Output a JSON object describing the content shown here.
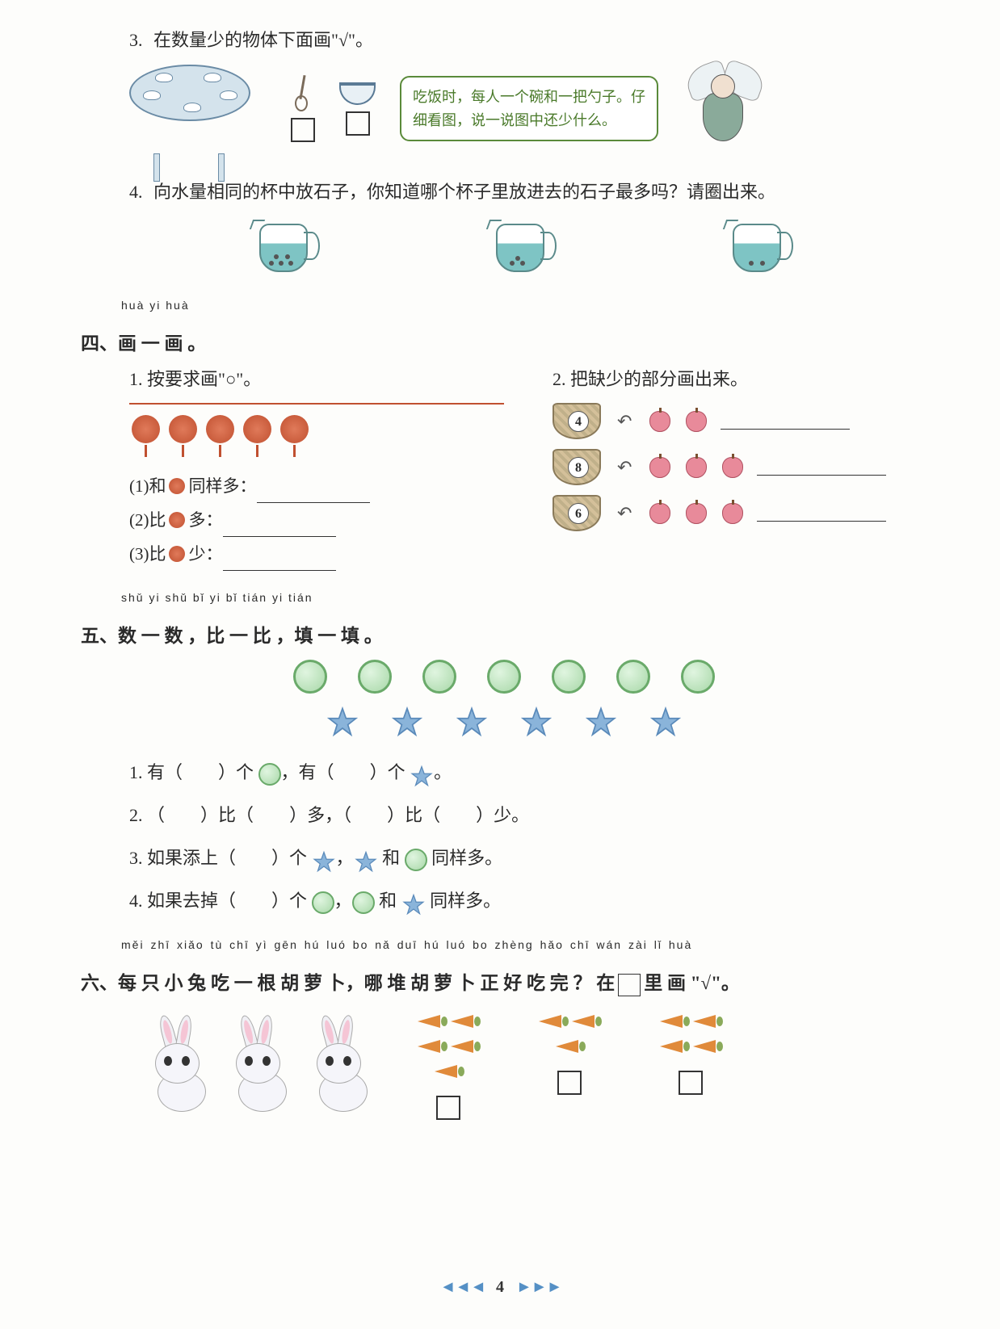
{
  "q3": {
    "num": "3.",
    "text": "在数量少的物体下面画\"√\"。",
    "bubble": "吃饭时，每人一个碗和一把勺子。仔细看图，说一说图中还少什么。"
  },
  "q4": {
    "num": "4.",
    "text": "向水量相同的杯中放石子，你知道哪个杯子里放进去的石子最多吗？请圈出来。",
    "jugs": [
      {
        "stones": 5
      },
      {
        "stones": 3
      },
      {
        "stones": 2
      }
    ]
  },
  "section4": {
    "num": "四、",
    "pinyin": "huà  yi  huà",
    "title": "画 一 画 。",
    "q1": {
      "num": "1.",
      "text": "按要求画\"○\"。",
      "lantern_count": 5,
      "sub1": "(1)和",
      "sub1_tail": "同样多：",
      "sub2": "(2)比",
      "sub2_tail": "多：",
      "sub3": "(3)比",
      "sub3_tail": "少："
    },
    "q2": {
      "num": "2.",
      "text": "把缺少的部分画出来。",
      "baskets": [
        {
          "num": "4",
          "apples": 2
        },
        {
          "num": "8",
          "apples": 3
        },
        {
          "num": "6",
          "apples": 3
        }
      ]
    }
  },
  "section5": {
    "num": "五、",
    "pinyin": "shǔ  yi  shǔ     bǐ  yi  bǐ     tián  yi  tián",
    "title": "数 一 数 ，比 一 比 ，填 一 填 。",
    "circle_count": 7,
    "star_count": 6,
    "q1": {
      "num": "1.",
      "p1": "有（",
      "p2": "）个",
      "p3": "，有（",
      "p4": "）个",
      "p5": "。"
    },
    "q2": {
      "num": "2.",
      "p1": "（",
      "p2": "）比（",
      "p3": "）多，（",
      "p4": "）比（",
      "p5": "）少。"
    },
    "q3": {
      "num": "3.",
      "p1": "如果添上（",
      "p2": "）个",
      "p3": "，",
      "p4": "和",
      "p5": "同样多。"
    },
    "q4": {
      "num": "4.",
      "p1": "如果去掉（",
      "p2": "）个",
      "p3": "，",
      "p4": "和",
      "p5": "同样多。"
    }
  },
  "section6": {
    "num": "六、",
    "pinyin": "měi zhī xiǎo tù chī yì gēn hú luó bo   nǎ duī hú luó bo zhèng hǎo chī wán    zài        lǐ  huà",
    "title_p1": "每 只 小 兔 吃 一 根 胡 萝 卜，哪 堆 胡 萝 卜  正  好 吃 完 ？ 在",
    "title_p2": "里 画 \"√\"。",
    "rabbit_count": 3,
    "carrot_piles": [
      5,
      3,
      4
    ]
  },
  "page_num": "4",
  "colors": {
    "text": "#2a2a2a",
    "bubble_border": "#5a8a3a",
    "bubble_text": "#4a7a2a",
    "circle_border": "#6aaa6a",
    "star_fill": "#6a9aca",
    "lantern": "#c05030",
    "apple": "#e88a9a",
    "carrot": "#e08a3a",
    "footer": "#5590c5"
  }
}
